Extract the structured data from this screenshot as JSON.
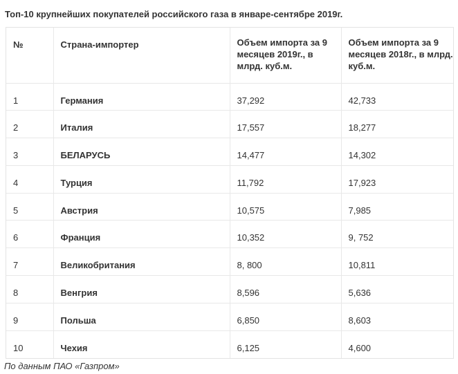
{
  "title": "Топ-10 крупнейших покупателей российского газа в январе-сентябре 2019г.",
  "table": {
    "headers": {
      "num": "№",
      "country": "Страна-импортер",
      "import_2019": "Объем импорта за 9 месяцев  2019г., в млрд. куб.м.",
      "import_2018": "Объем импорта за 9 месяцев  2018г., в млрд. куб.м."
    },
    "rows": [
      {
        "num": "1",
        "country": "Германия",
        "v2019": "37,292",
        "v2018": "42,733"
      },
      {
        "num": "2",
        "country": "Италия",
        "v2019": "17,557",
        "v2018": "18,277"
      },
      {
        "num": "3",
        "country": "БЕЛАРУСЬ",
        "v2019": "14,477",
        "v2018": "14,302"
      },
      {
        "num": "4",
        "country": "Турция",
        "v2019": "11,792",
        "v2018": "17,923"
      },
      {
        "num": "5",
        "country": "Австрия",
        "v2019": "10,575",
        "v2018": "7,985"
      },
      {
        "num": "6",
        "country": "Франция",
        "v2019": "10,352",
        "v2018": "9, 752"
      },
      {
        "num": "7",
        "country": "Великобритания",
        "v2019": "8, 800",
        "v2018": "10,811"
      },
      {
        "num": "8",
        "country": "Венгрия",
        "v2019": "8,596",
        "v2018": "5,636"
      },
      {
        "num": "9",
        "country": "Польша",
        "v2019": "6,850",
        "v2018": "8,603"
      },
      {
        "num": "10",
        "country": "Чехия",
        "v2019": "6,125",
        "v2018": "4,600"
      }
    ]
  },
  "source": "По данным ПАО «Газпром»"
}
